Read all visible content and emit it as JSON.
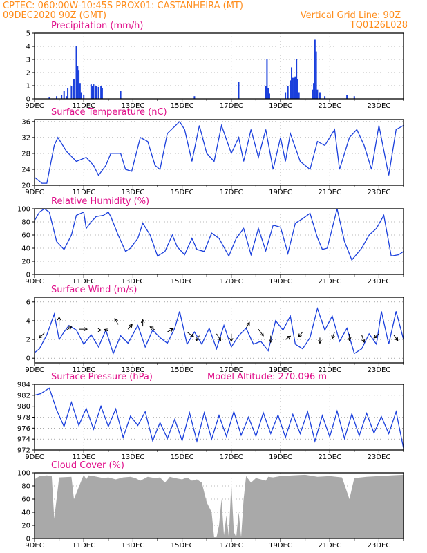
{
  "header": {
    "line1_left": "CPTEC:   060:00W-10:45S   PROX01: CASTANHEIRA (MT)",
    "line2_left": "09DEC2020 90Z (GMT)",
    "line2_right": "Vertical Grid Line: 90Z",
    "line3_right": "TQ0126L028"
  },
  "colors": {
    "header": "#ff8c1a",
    "titles": "#e0108a",
    "series": "#1a3fdc",
    "cloud": "#a9a9a9"
  },
  "x_axis_labels": [
    "9DEC",
    "11DEC",
    "13DEC",
    "15DEC",
    "17DEC",
    "19DEC",
    "21DEC",
    "23DEC"
  ],
  "chart_data": [
    {
      "id": "precip",
      "type": "bar",
      "title": "Precipitation (mm/h)",
      "ylim": [
        0,
        5
      ],
      "yticks": [
        0,
        1,
        2,
        3,
        4,
        5
      ],
      "xlim": [
        0,
        15
      ],
      "x": [
        0.6,
        0.9,
        1.1,
        1.2,
        1.3,
        1.35,
        1.5,
        1.6,
        1.7,
        1.75,
        1.8,
        1.85,
        1.9,
        2.0,
        2.3,
        2.35,
        2.4,
        2.5,
        2.6,
        2.7,
        2.75,
        3.5,
        6.5,
        8.3,
        9.4,
        9.45,
        9.5,
        9.55,
        10.2,
        10.3,
        10.4,
        10.45,
        10.5,
        10.55,
        10.6,
        10.65,
        10.7,
        10.75,
        11.3,
        11.35,
        11.4,
        11.45,
        11.5,
        11.6,
        11.8,
        12.7,
        13.0
      ],
      "values": [
        0.1,
        0.2,
        0.3,
        0.6,
        0.2,
        0.8,
        1.0,
        1.5,
        4.0,
        2.5,
        2.2,
        1.2,
        0.5,
        0.3,
        1.1,
        1.0,
        1.1,
        1.0,
        0.9,
        1.0,
        0.8,
        0.6,
        0.2,
        1.3,
        1.0,
        3.0,
        0.8,
        0.4,
        0.5,
        1.0,
        1.4,
        2.4,
        1.6,
        1.6,
        1.7,
        3.0,
        1.5,
        0.5,
        0.7,
        1.2,
        4.5,
        3.6,
        0.7,
        0.5,
        0.2,
        0.3,
        0.2
      ]
    },
    {
      "id": "temperature",
      "type": "line",
      "title": "Surface Temperature (nC)",
      "ylim": [
        20,
        36.5
      ],
      "yticks": [
        20,
        24,
        28,
        32,
        36
      ],
      "xlim": [
        0,
        15
      ],
      "x": [
        0.0,
        0.3,
        0.5,
        0.8,
        0.95,
        1.3,
        1.7,
        2.1,
        2.4,
        2.6,
        2.9,
        3.1,
        3.5,
        3.7,
        3.95,
        4.3,
        4.6,
        4.9,
        5.1,
        5.4,
        5.9,
        6.1,
        6.4,
        6.7,
        7.0,
        7.3,
        7.6,
        8.0,
        8.3,
        8.5,
        8.8,
        9.1,
        9.4,
        9.7,
        10.0,
        10.2,
        10.4,
        10.8,
        11.2,
        11.5,
        11.8,
        12.2,
        12.4,
        12.8,
        13.1,
        13.4,
        13.7,
        14.0,
        14.4,
        14.7,
        15.0
      ],
      "values": [
        22,
        20.5,
        20.5,
        30,
        32,
        28.5,
        26,
        27,
        25,
        22.5,
        25,
        28,
        28,
        24,
        23.5,
        32,
        31,
        25,
        24,
        33,
        36,
        34,
        26,
        35,
        28,
        26,
        35,
        28,
        32,
        26,
        34,
        27,
        34,
        24,
        32,
        26,
        33,
        26,
        24,
        31,
        30,
        34,
        24,
        32,
        34,
        30,
        24,
        35,
        22.5,
        34,
        35
      ]
    },
    {
      "id": "humidity",
      "type": "line",
      "title": "Relative Humidity (%)",
      "ylim": [
        0,
        100
      ],
      "yticks": [
        0,
        20,
        40,
        60,
        80,
        100
      ],
      "xlim": [
        0,
        15
      ],
      "x": [
        0.0,
        0.2,
        0.4,
        0.6,
        0.9,
        1.2,
        1.5,
        1.7,
        2.0,
        2.1,
        2.3,
        2.5,
        2.8,
        3.0,
        3.1,
        3.4,
        3.7,
        3.9,
        4.2,
        4.4,
        4.7,
        5.0,
        5.3,
        5.6,
        5.8,
        6.1,
        6.4,
        6.6,
        6.9,
        7.2,
        7.5,
        7.9,
        8.2,
        8.5,
        8.8,
        9.1,
        9.4,
        9.7,
        10.0,
        10.3,
        10.6,
        10.9,
        11.2,
        11.5,
        11.7,
        11.9,
        12.3,
        12.6,
        12.9,
        13.3,
        13.6,
        13.9,
        14.2,
        14.5,
        14.8,
        15.0
      ],
      "values": [
        82,
        95,
        100,
        95,
        50,
        38,
        60,
        90,
        95,
        70,
        80,
        88,
        90,
        95,
        88,
        60,
        35,
        40,
        55,
        78,
        60,
        28,
        35,
        60,
        42,
        30,
        55,
        38,
        35,
        63,
        55,
        28,
        55,
        70,
        30,
        70,
        36,
        75,
        72,
        32,
        78,
        85,
        93,
        56,
        38,
        40,
        100,
        50,
        22,
        40,
        60,
        70,
        90,
        28,
        30,
        35
      ]
    },
    {
      "id": "wind",
      "type": "line",
      "title": "Surface Wind (m/s)",
      "ylim": [
        -0.5,
        6.5
      ],
      "yticks": [
        0,
        2,
        4,
        6
      ],
      "xlim": [
        0,
        15
      ],
      "x": [
        0.0,
        0.2,
        0.5,
        0.8,
        1.0,
        1.2,
        1.4,
        1.7,
        2.0,
        2.3,
        2.6,
        2.9,
        3.2,
        3.5,
        3.8,
        4.2,
        4.5,
        4.8,
        5.1,
        5.4,
        5.7,
        5.9,
        6.2,
        6.5,
        6.8,
        7.1,
        7.4,
        7.7,
        8.0,
        8.3,
        8.6,
        8.9,
        9.2,
        9.5,
        9.8,
        10.1,
        10.4,
        10.6,
        10.9,
        11.2,
        11.5,
        11.8,
        12.1,
        12.4,
        12.7,
        13.0,
        13.3,
        13.6,
        13.9,
        14.1,
        14.4,
        14.7,
        15.0
      ],
      "values": [
        0.6,
        1.0,
        2.5,
        4.7,
        2.0,
        2.8,
        3.5,
        3.0,
        1.5,
        2.5,
        1.2,
        3.0,
        0.5,
        2.4,
        1.6,
        3.5,
        1.2,
        3.0,
        2.2,
        1.6,
        3.2,
        5.0,
        1.5,
        2.8,
        1.5,
        3.2,
        1.0,
        3.5,
        1.2,
        2.4,
        3.2,
        1.5,
        1.8,
        0.8,
        4.0,
        3.0,
        4.5,
        1.5,
        1.0,
        2.2,
        5.3,
        3.0,
        4.5,
        1.8,
        3.2,
        0.5,
        1.0,
        2.6,
        1.5,
        5.0,
        1.5,
        5.0,
        2.0
      ],
      "arrows": [
        {
          "x": 0.4,
          "y": 2.7,
          "u": -0.6,
          "v": -0.6
        },
        {
          "x": 1.0,
          "y": 3.5,
          "u": 0.0,
          "v": 1.0
        },
        {
          "x": 1.3,
          "y": 3.0,
          "u": 0.6,
          "v": 0.4
        },
        {
          "x": 1.8,
          "y": 3.1,
          "u": 1.0,
          "v": 0.0
        },
        {
          "x": 2.4,
          "y": 3.0,
          "u": 0.9,
          "v": 0.0
        },
        {
          "x": 3.0,
          "y": 2.9,
          "u": -0.5,
          "v": 0.2
        },
        {
          "x": 3.4,
          "y": 3.6,
          "u": -0.4,
          "v": 0.7
        },
        {
          "x": 3.8,
          "y": 3.1,
          "u": 0.5,
          "v": 0.6
        },
        {
          "x": 4.4,
          "y": 3.4,
          "u": 0.0,
          "v": 0.8
        },
        {
          "x": 4.9,
          "y": 3.0,
          "u": -0.6,
          "v": 0.4
        },
        {
          "x": 5.4,
          "y": 2.8,
          "u": 0.7,
          "v": 0.4
        },
        {
          "x": 6.2,
          "y": 2.8,
          "u": 0.8,
          "v": -0.6
        },
        {
          "x": 6.7,
          "y": 2.4,
          "u": -0.4,
          "v": -0.6
        },
        {
          "x": 7.4,
          "y": 2.6,
          "u": 0.5,
          "v": -0.8
        },
        {
          "x": 8.0,
          "y": 2.6,
          "u": 0.0,
          "v": -0.9
        },
        {
          "x": 8.6,
          "y": 3.2,
          "u": 0.4,
          "v": 0.7
        },
        {
          "x": 9.1,
          "y": 3.1,
          "u": 0.6,
          "v": -0.8
        },
        {
          "x": 9.6,
          "y": 2.4,
          "u": 0.0,
          "v": -0.8
        },
        {
          "x": 10.2,
          "y": 2.0,
          "u": 0.6,
          "v": 0.4
        },
        {
          "x": 10.9,
          "y": 2.8,
          "u": -0.5,
          "v": -0.6
        },
        {
          "x": 11.6,
          "y": 2.2,
          "u": 0.0,
          "v": -0.7
        },
        {
          "x": 12.2,
          "y": 2.8,
          "u": -0.3,
          "v": -0.8
        },
        {
          "x": 12.8,
          "y": 2.6,
          "u": 0.0,
          "v": -0.8
        },
        {
          "x": 13.3,
          "y": 2.5,
          "u": 0.3,
          "v": -0.9
        },
        {
          "x": 14.0,
          "y": 2.6,
          "u": -0.6,
          "v": -0.5
        },
        {
          "x": 14.6,
          "y": 2.5,
          "u": 0.5,
          "v": -0.7
        }
      ]
    },
    {
      "id": "pressure",
      "type": "line",
      "title": "Surface Pressure (hPa)",
      "annotation": "Model Altitude: 270.096 m",
      "ylim": [
        972,
        984
      ],
      "yticks": [
        972,
        974,
        976,
        978,
        980,
        982,
        984
      ],
      "xlim": [
        0,
        15
      ],
      "x": [
        0.0,
        0.25,
        0.6,
        0.9,
        1.2,
        1.5,
        1.8,
        2.1,
        2.4,
        2.7,
        3.0,
        3.3,
        3.6,
        3.9,
        4.2,
        4.5,
        4.8,
        5.1,
        5.4,
        5.7,
        6.0,
        6.3,
        6.6,
        6.9,
        7.2,
        7.5,
        7.8,
        8.1,
        8.4,
        8.7,
        9.0,
        9.3,
        9.6,
        9.9,
        10.2,
        10.5,
        10.8,
        11.1,
        11.4,
        11.7,
        12.0,
        12.3,
        12.6,
        12.9,
        13.2,
        13.5,
        13.8,
        14.1,
        14.4,
        14.7,
        15.0
      ],
      "values": [
        982,
        982.3,
        983.3,
        979.3,
        976.3,
        980.7,
        976.5,
        979.6,
        975.8,
        980.0,
        976.3,
        979.5,
        974.3,
        978.2,
        976.5,
        979.0,
        973.7,
        977.0,
        974.1,
        977.6,
        973.7,
        978.8,
        973.6,
        978.8,
        974.0,
        978.3,
        974.5,
        979.0,
        974.7,
        978.0,
        974.5,
        978.8,
        975.0,
        978.4,
        974.3,
        978.5,
        975.0,
        979.0,
        973.6,
        978.3,
        974.4,
        979.1,
        974.1,
        978.6,
        974.6,
        978.7,
        975.1,
        978.1,
        975.0,
        979.0,
        972.3
      ]
    },
    {
      "id": "cloud",
      "type": "area",
      "title": "Cloud Cover (%)",
      "ylim": [
        0,
        100
      ],
      "yticks": [
        0,
        20,
        40,
        60,
        80,
        100
      ],
      "xlim": [
        0,
        15
      ],
      "x": [
        0.0,
        0.2,
        0.5,
        0.7,
        0.8,
        1.0,
        1.5,
        1.6,
        2.0,
        2.1,
        2.2,
        2.4,
        2.8,
        3.0,
        3.3,
        3.6,
        3.9,
        4.1,
        4.3,
        4.6,
        4.9,
        5.1,
        5.3,
        5.5,
        5.7,
        6.0,
        6.2,
        6.4,
        6.6,
        6.8,
        7.0,
        7.2,
        7.3,
        7.4,
        7.5,
        7.6,
        7.7,
        7.8,
        7.9,
        8.0,
        8.1,
        8.2,
        8.3,
        8.4,
        8.5,
        8.6,
        8.8,
        9.0,
        9.2,
        9.4,
        9.5,
        9.7,
        10.0,
        10.5,
        11.0,
        11.5,
        12.0,
        12.5,
        12.8,
        13.0,
        13.5,
        14.0,
        14.5,
        15.0
      ],
      "values": [
        90,
        95,
        96,
        95,
        30,
        93,
        94,
        60,
        97,
        90,
        96,
        95,
        92,
        93,
        90,
        93,
        94,
        92,
        88,
        94,
        92,
        93,
        85,
        94,
        92,
        90,
        93,
        88,
        90,
        85,
        55,
        40,
        2,
        2,
        20,
        60,
        5,
        35,
        2,
        85,
        10,
        2,
        40,
        2,
        60,
        95,
        85,
        92,
        90,
        88,
        94,
        93,
        95,
        96,
        97,
        94,
        95,
        93,
        60,
        92,
        94,
        95,
        96,
        97
      ]
    }
  ]
}
